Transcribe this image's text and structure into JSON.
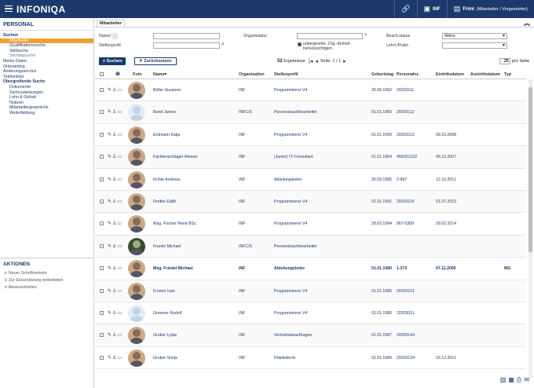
{
  "topbar": {
    "logo": "INFONIQA",
    "seg_inf": "INF",
    "user_name": "Frimi",
    "user_role": "(Mitarbeiter / Vorgesetzter)"
  },
  "sidebar": {
    "title": "PERSONAL",
    "items": [
      {
        "label": "Suchen",
        "type": "head"
      },
      {
        "label": "Mitarbeiter",
        "type": "active"
      },
      {
        "label": "Qualifikationssuche",
        "type": "sub"
      },
      {
        "label": "Skillsuche",
        "type": "sub"
      },
      {
        "label": "Stichtagsuche",
        "type": "sub2"
      },
      {
        "label": "Meine Daten",
        "type": "item"
      },
      {
        "label": "Onboarding",
        "type": "item"
      },
      {
        "label": "Änderungsservice",
        "type": "item"
      },
      {
        "label": "Telefonliste",
        "type": "item"
      },
      {
        "label": "Übergreifende Suche",
        "type": "head"
      },
      {
        "label": "Dokumente",
        "type": "sub"
      },
      {
        "label": "Sachzuweisungen",
        "type": "sub"
      },
      {
        "label": "Lohn & Gehalt",
        "type": "sub"
      },
      {
        "label": "Notizen",
        "type": "sub"
      },
      {
        "label": "Mitarbeitergespräche",
        "type": "sub"
      },
      {
        "label": "Weiterbildung",
        "type": "sub"
      }
    ]
  },
  "actions": {
    "title": "AKTIONEN",
    "items": [
      "Neuer Schriftverkehr",
      "Zur Einschätzung weiterleiten",
      "Abwesenheiten"
    ]
  },
  "tab": "Mitarbeiter",
  "filters": {
    "name_label": "Name/",
    "stellenprofil_label": "Stellenprofil",
    "organisation_label": "Organisation",
    "untergeordnet_label": "untergeordn. Org.-Einheit berücksichtigen",
    "beschstatus_label": "Besch.status",
    "beschstatus_value": "Aktive",
    "lehrl_label": "Lehrl./Prakt.:"
  },
  "buttons": {
    "search": "Suchen",
    "reset": "Zurücksetzen"
  },
  "results": {
    "count": "52",
    "label": "Ergebnisse",
    "page_word": "Seite",
    "page": "1 / 1",
    "per_page_value": "25",
    "per_page_label": "pro Seite"
  },
  "columns": {
    "foto": "Foto",
    "name": "Name▾",
    "organisation": "Organisation",
    "stellenprofil": "Stellenprofil",
    "geburtstag": "Geburtstag",
    "mitarbeiternr": "Personalnr.",
    "eintritt": "Eintrittsdatum",
    "austritt": "Austrittsdatum",
    "typ": "Typ"
  },
  "rows": [
    {
      "name": "Böller Susanne",
      "org": "INF",
      "profil": "Programmierer V4",
      "geb": "25.05.1992",
      "nr": "20203111",
      "eintritt": "",
      "typ": "",
      "photo": "f",
      "bold": false
    },
    {
      "name": "Bond James",
      "org": "INFC/S",
      "profil": "Personalsachbearbeiter",
      "geb": "01.01.1960",
      "nr": "20203112",
      "eintritt": "",
      "typ": "",
      "photo": "ph",
      "bold": false
    },
    {
      "name": "Erdmann Katja",
      "org": "INF",
      "profil": "Programmierer V4",
      "geb": "01.01.1990",
      "nr": "20203113",
      "eintritt": "09.10.2008",
      "typ": "",
      "photo": "f",
      "bold": false
    },
    {
      "name": "Fächtenschläger Werner",
      "org": "INF",
      "profil": "(Junior) IT-Consultant",
      "geb": "01.01.1964",
      "nr": "456321332",
      "eintritt": "06.12.2007",
      "typ": "",
      "photo": "m",
      "bold": false
    },
    {
      "name": "Fichte Andreas",
      "org": "INF",
      "profil": "Abteilungsleiter",
      "geb": "30.09.1985",
      "nr": "2-897",
      "eintritt": "12.10.2011",
      "typ": "",
      "photo": "m",
      "bold": false
    },
    {
      "name": "Findler Edith",
      "org": "INF",
      "profil": "Programmierer V4",
      "geb": "01.01.1991",
      "nr": "20203116",
      "eintritt": "01.07.2013",
      "typ": "",
      "photo": "f",
      "bold": false
    },
    {
      "name": "Mag. Fischer René BSc",
      "org": "INF",
      "profil": "Programmierer V4",
      "geb": "28.02.1984",
      "nr": "867-5309",
      "eintritt": "29.02.2014",
      "typ": "",
      "photo": "m",
      "bold": false
    },
    {
      "name": "Franke Michael",
      "org": "INFC/S",
      "profil": "Personalsachbearbeiter",
      "geb": "",
      "nr": "",
      "eintritt": "",
      "typ": "",
      "photo": "dark",
      "bold": false
    },
    {
      "name": "Mag. Friedel Michael",
      "org": "INF",
      "profil": "Abteilungsleiter",
      "geb": "01.01.1980",
      "nr": "1-273",
      "eintritt": "07.11.2005",
      "typ": "MG",
      "photo": "m",
      "bold": true
    },
    {
      "name": "Fromm Ivan",
      "org": "INF",
      "profil": "Programmierer V4",
      "geb": "01.01.1985",
      "nr": "20203151",
      "eintritt": "",
      "typ": "",
      "photo": "m",
      "bold": false
    },
    {
      "name": "Gmeiner Rudolf",
      "org": "INF",
      "profil": "Programmierer V4",
      "geb": "01.01.1980",
      "nr": "20203011",
      "eintritt": "",
      "typ": "",
      "photo": "ph",
      "bold": false
    },
    {
      "name": "Gruber Lydia",
      "org": "INF",
      "profil": "Vertriebsbeauftragter",
      "geb": "01.01.1987",
      "nr": "20203144",
      "eintritt": "",
      "typ": "",
      "photo": "f",
      "bold": false
    },
    {
      "name": "Gruber Sonja",
      "org": "INF",
      "profil": "Filialleiter/in",
      "geb": "01.01.1989",
      "nr": "20203134",
      "eintritt": "16.12.2011",
      "typ": "",
      "photo": "f",
      "bold": false
    }
  ]
}
